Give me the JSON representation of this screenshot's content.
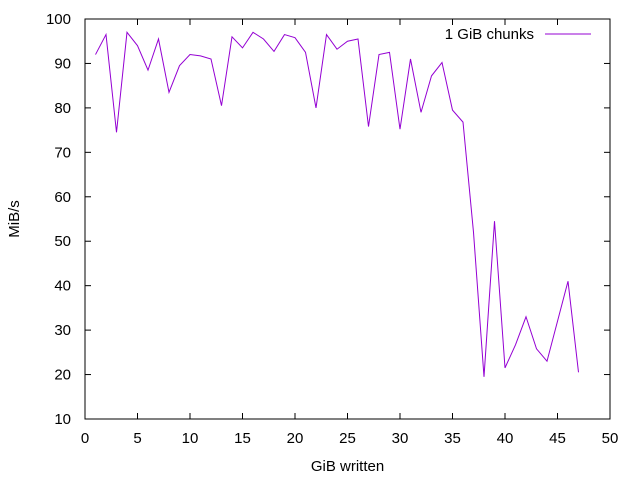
{
  "chart_data": {
    "type": "line",
    "title": "",
    "xlabel": "GiB written",
    "ylabel": "MiB/s",
    "xlim": [
      0,
      50
    ],
    "ylim": [
      10,
      100
    ],
    "xticks": [
      0,
      5,
      10,
      15,
      20,
      25,
      30,
      35,
      40,
      45,
      50
    ],
    "yticks": [
      10,
      20,
      30,
      40,
      50,
      60,
      70,
      80,
      90,
      100
    ],
    "grid": false,
    "legend_position": "top-right",
    "series": [
      {
        "name": "1 GiB chunks",
        "color": "#9400d3",
        "x": [
          1,
          2,
          3,
          4,
          5,
          6,
          7,
          8,
          9,
          10,
          11,
          12,
          13,
          14,
          15,
          16,
          17,
          18,
          19,
          20,
          21,
          22,
          23,
          24,
          25,
          26,
          27,
          28,
          29,
          30,
          31,
          32,
          33,
          34,
          35,
          36,
          37,
          38,
          39,
          40,
          41,
          42,
          43,
          44,
          45,
          46,
          47
        ],
        "y": [
          92,
          96.5,
          74.5,
          97,
          94,
          88.5,
          95.5,
          83.5,
          89.5,
          92,
          91.7,
          91,
          80.5,
          96,
          93.5,
          97,
          95.5,
          92.7,
          96.5,
          95.8,
          92.5,
          80,
          96.5,
          93.2,
          95,
          95.5,
          75.8,
          92,
          92.5,
          75.2,
          91,
          79,
          87.2,
          90.2,
          79.5,
          76.8,
          52,
          19.5,
          54.5,
          21.5,
          26.7,
          33,
          25.8,
          23,
          32,
          41,
          20.5
        ]
      }
    ]
  }
}
